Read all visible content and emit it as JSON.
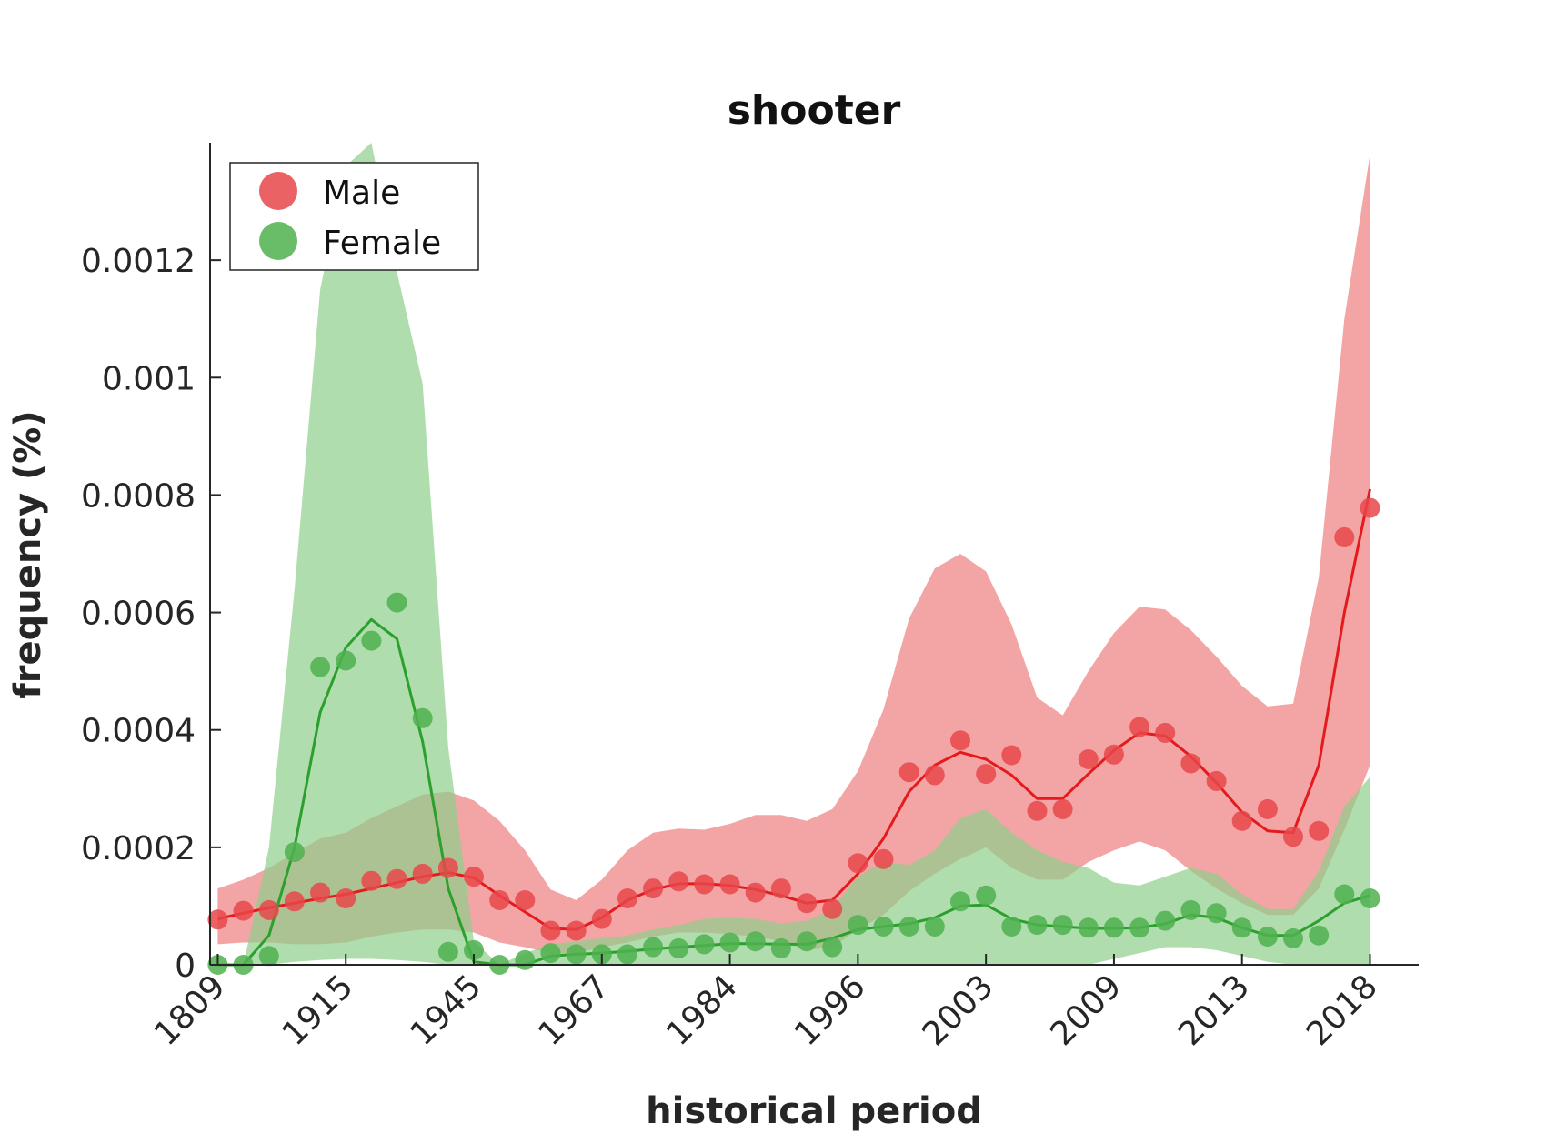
{
  "chart_data": {
    "type": "line",
    "title": "shooter",
    "xlabel": "historical period",
    "ylabel": "frequency (%)",
    "x_tick_labels": [
      "1809",
      "1915",
      "1945",
      "1967",
      "1984",
      "1996",
      "2003",
      "2009",
      "2013",
      "2018"
    ],
    "x_tick_positions": [
      0,
      5,
      10,
      15,
      20,
      25,
      30,
      35,
      40,
      45
    ],
    "y_ticks": [
      0,
      0.0002,
      0.0004,
      0.0006,
      0.0008,
      0.001,
      0.0012
    ],
    "y_tick_labels": [
      "0",
      "0.0002",
      "0.0004",
      "0.0006",
      "0.0008",
      "0.001",
      "0.0012"
    ],
    "xlim": [
      -0.3,
      46.9
    ],
    "ylim": [
      0,
      0.0014
    ],
    "grid": false,
    "legend_position": "top-left",
    "series": [
      {
        "name": "Male",
        "color": "#e41a1c",
        "marker_color": "#e8474a",
        "band_color": "#ee7f80",
        "points": [
          7.7e-05,
          9.2e-05,
          9.3e-05,
          0.000108,
          0.000123,
          0.000113,
          0.000143,
          0.000146,
          0.000155,
          0.000165,
          0.00015,
          0.00011,
          0.00011,
          5.8e-05,
          5.8e-05,
          7.8e-05,
          0.000113,
          0.00013,
          0.000142,
          0.000137,
          0.000137,
          0.000123,
          0.00013,
          0.000105,
          9.5e-05,
          0.000173,
          0.00018,
          0.000328,
          0.000323,
          0.000382,
          0.000325,
          0.000357,
          0.000262,
          0.000265,
          0.00035,
          0.000358,
          0.000405,
          0.000395,
          0.000343,
          0.000313,
          0.000245,
          0.000265,
          0.000218,
          0.000228,
          0.000728,
          0.000778
        ],
        "trend": [
          7.8e-05,
          8.8e-05,
          9.7e-05,
          0.000105,
          0.000113,
          0.00012,
          0.00013,
          0.00014,
          0.00015,
          0.000157,
          0.000148,
          0.000118,
          9e-05,
          6.2e-05,
          6e-05,
          8e-05,
          0.00011,
          0.000128,
          0.000138,
          0.000138,
          0.000135,
          0.000128,
          0.000118,
          0.000105,
          0.00011,
          0.000155,
          0.000215,
          0.000295,
          0.00034,
          0.000362,
          0.00035,
          0.000323,
          0.000283,
          0.000283,
          0.000325,
          0.000365,
          0.000395,
          0.00039,
          0.000355,
          0.00031,
          0.00026,
          0.000228,
          0.000225,
          0.00034,
          0.0006,
          0.00081
        ],
        "upper": [
          0.00013,
          0.000145,
          0.000165,
          0.00019,
          0.000215,
          0.000225,
          0.00025,
          0.00027,
          0.00029,
          0.000295,
          0.00028,
          0.000245,
          0.000195,
          0.000128,
          0.00011,
          0.000145,
          0.000195,
          0.000225,
          0.000232,
          0.00023,
          0.00024,
          0.000255,
          0.000255,
          0.000245,
          0.000265,
          0.00033,
          0.000435,
          0.00059,
          0.000675,
          0.0007,
          0.00067,
          0.00058,
          0.000455,
          0.000425,
          0.0005,
          0.000565,
          0.00061,
          0.000605,
          0.00057,
          0.000525,
          0.000475,
          0.00044,
          0.000445,
          0.00066,
          0.0011,
          0.00138
        ],
        "lower": [
          3.5e-05,
          3.8e-05,
          3.8e-05,
          3.5e-05,
          3.5e-05,
          3.8e-05,
          4.8e-05,
          5.5e-05,
          6e-05,
          6e-05,
          5.5e-05,
          3.8e-05,
          3e-05,
          2e-05,
          2e-05,
          3e-05,
          3.8e-05,
          4.8e-05,
          5.5e-05,
          5.5e-05,
          5.2e-05,
          4.8e-05,
          4e-05,
          2.5e-05,
          3e-05,
          6e-05,
          8.5e-05,
          0.000125,
          0.000155,
          0.00018,
          0.0002,
          0.000165,
          0.000145,
          0.000145,
          0.000175,
          0.000195,
          0.00021,
          0.000195,
          0.00016,
          0.00013,
          0.000105,
          8.5e-05,
          8.5e-05,
          0.00013,
          0.00023,
          0.00034
        ]
      },
      {
        "name": "Female",
        "color": "#2ca02c",
        "marker_color": "#4fb14f",
        "band_color": "#8ecf8c",
        "points": [
          0.0,
          0.0,
          1.5e-05,
          0.000192,
          0.000507,
          0.000518,
          0.000552,
          0.000617,
          0.00042,
          2.2e-05,
          2.5e-05,
          0.0,
          8e-06,
          2e-05,
          1.8e-05,
          1.8e-05,
          1.8e-05,
          3e-05,
          2.8e-05,
          3.5e-05,
          3.8e-05,
          4e-05,
          2.8e-05,
          4e-05,
          3e-05,
          6.8e-05,
          6.5e-05,
          6.5e-05,
          6.5e-05,
          0.000108,
          0.000118,
          6.5e-05,
          6.8e-05,
          6.8e-05,
          6.3e-05,
          6.3e-05,
          6.3e-05,
          7.5e-05,
          9.3e-05,
          8.8e-05,
          6.3e-05,
          4.8e-05,
          4.5e-05,
          5e-05,
          0.00012,
          0.000113
        ],
        "trend": [
          0.0,
          0.0,
          5e-05,
          0.0002,
          0.00043,
          0.00054,
          0.000588,
          0.000555,
          0.00038,
          0.00013,
          5e-06,
          0.0,
          0.0,
          1.5e-05,
          1.8e-05,
          2e-05,
          2.3e-05,
          2.7e-05,
          3e-05,
          3.3e-05,
          3.6e-05,
          3.6e-05,
          3.5e-05,
          3.5e-05,
          4.5e-05,
          6e-05,
          6.5e-05,
          7e-05,
          8e-05,
          0.0001,
          0.000102,
          7.8e-05,
          6.8e-05,
          6.5e-05,
          6.2e-05,
          6.2e-05,
          6.3e-05,
          7e-05,
          8.5e-05,
          8e-05,
          6.3e-05,
          5e-05,
          5e-05,
          7.5e-05,
          0.000105,
          0.000118
        ],
        "upper": [
          0.0,
          0.0,
          0.0002,
          0.00064,
          0.00115,
          0.00136,
          0.0014,
          0.00118,
          0.00099,
          0.00037,
          4e-05,
          0.0,
          2e-05,
          3.5e-05,
          4e-05,
          4.5e-05,
          5e-05,
          6e-05,
          6.8e-05,
          7.8e-05,
          8e-05,
          7.8e-05,
          7e-05,
          7.5e-05,
          9.5e-05,
          0.00015,
          0.000175,
          0.00017,
          0.000195,
          0.00025,
          0.000265,
          0.000225,
          0.000195,
          0.000175,
          0.000165,
          0.00014,
          0.000135,
          0.00015,
          0.000165,
          0.000155,
          0.00012,
          9.5e-05,
          9.5e-05,
          0.00016,
          0.00027,
          0.00032
        ],
        "lower": [
          0.0,
          0.0,
          0.0,
          5e-06,
          8e-06,
          1e-05,
          1e-05,
          8e-06,
          5e-06,
          0.0,
          0.0,
          0.0,
          0.0,
          0.0,
          0.0,
          0.0,
          0.0,
          0.0,
          0.0,
          0.0,
          0.0,
          0.0,
          0.0,
          0.0,
          0.0,
          0.0,
          0.0,
          0.0,
          0.0,
          0.0,
          0.0,
          0.0,
          0.0,
          0.0,
          0.0,
          1e-05,
          2e-05,
          3e-05,
          3e-05,
          2.5e-05,
          1.5e-05,
          5e-06,
          0.0,
          0.0,
          0.0,
          0.0
        ]
      }
    ]
  }
}
